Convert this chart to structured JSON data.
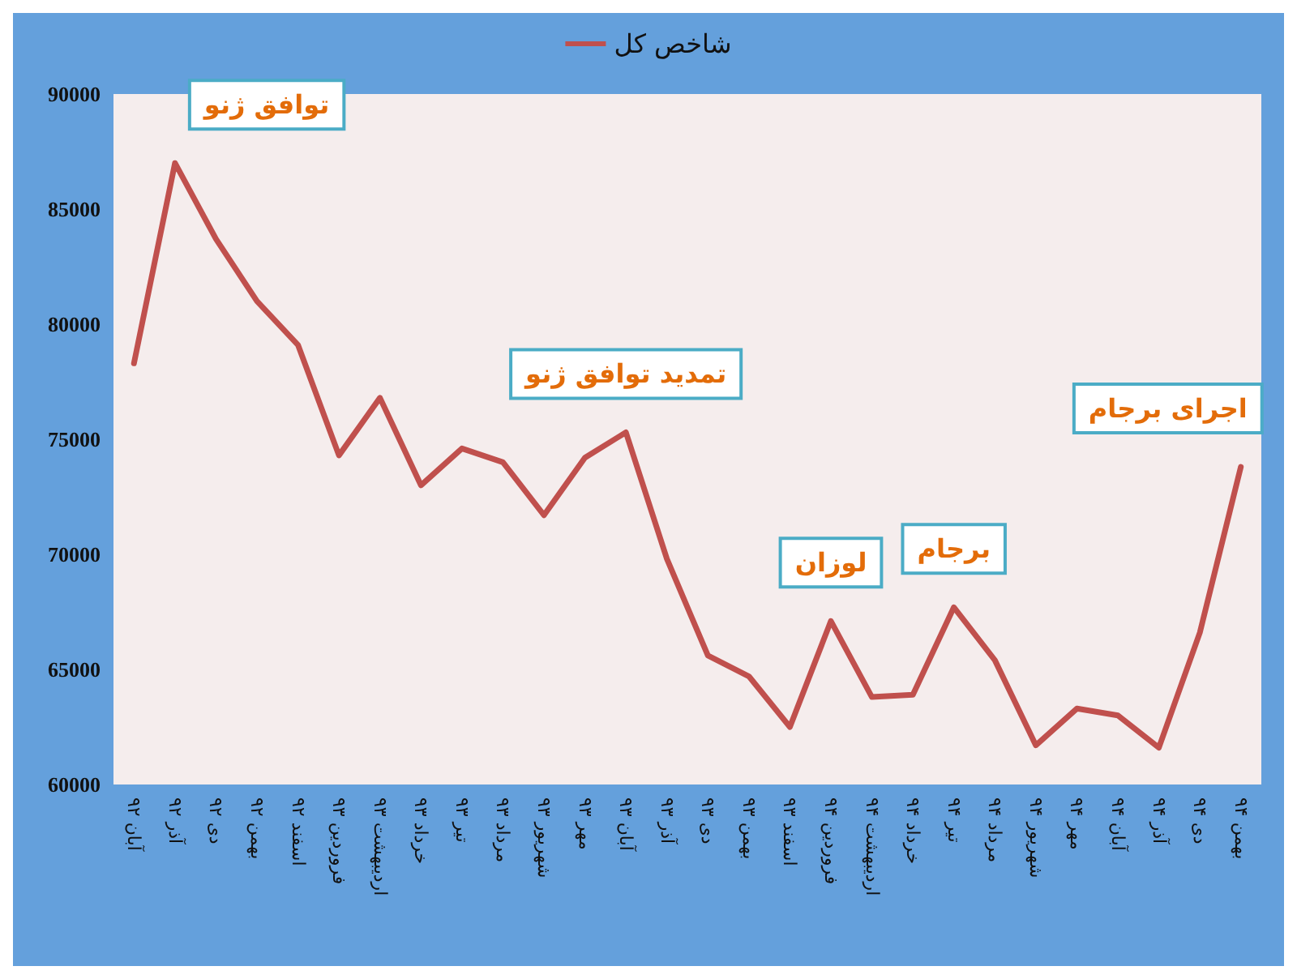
{
  "chart_data": {
    "type": "line",
    "categories": [
      "آبان ۹۲",
      "آذر ۹۲",
      "دی ۹۲",
      "بهمن ۹۲",
      "اسفند ۹۲",
      "فروردین ۹۳",
      "اردیبهشت ۹۳",
      "خرداد ۹۳",
      "تیر ۹۳",
      "مرداد ۹۳",
      "شهریور ۹۳",
      "مهر ۹۳",
      "آبان ۹۳",
      "آذر ۹۳",
      "دی ۹۳",
      "بهمن ۹۳",
      "اسفند ۹۳",
      "فروردین ۹۴",
      "اردیبهشت ۹۴",
      "خرداد ۹۴",
      "تیر ۹۴",
      "مرداد ۹۴",
      "شهریور ۹۴",
      "مهر ۹۴",
      "آبان ۹۴",
      "آذر ۹۴",
      "دی ۹۴",
      "بهمن ۹۴"
    ],
    "series": [
      {
        "name": "شاخص کل",
        "color": "#c0504d",
        "values": [
          78300,
          87000,
          83700,
          81000,
          79100,
          74300,
          76800,
          73000,
          74600,
          74000,
          71700,
          74200,
          75300,
          69800,
          65600,
          64700,
          62500,
          67100,
          63800,
          63900,
          67700,
          65400,
          61700,
          63300,
          63000,
          61600,
          66600,
          73800
        ]
      }
    ],
    "ylim": [
      60000,
      90000
    ],
    "yticks": [
      60000,
      65000,
      70000,
      75000,
      80000,
      85000,
      90000
    ],
    "grid": false,
    "legend": "top",
    "marker": "none",
    "line_style": "solid",
    "annotations": [
      {
        "text": "توافق ژنو",
        "x": "آذر ۹۲",
        "y": 87000
      },
      {
        "text": "تمدید توافق ژنو",
        "x": "آبان ۹۳",
        "y": 75300
      },
      {
        "text": "لوزان",
        "x": "فروردین ۹۴",
        "y": 67100
      },
      {
        "text": "برجام",
        "x": "تیر ۹۴",
        "y": 67700
      },
      {
        "text": "اجرای برجام",
        "x": "بهمن ۹۴",
        "y": 73800
      }
    ]
  }
}
